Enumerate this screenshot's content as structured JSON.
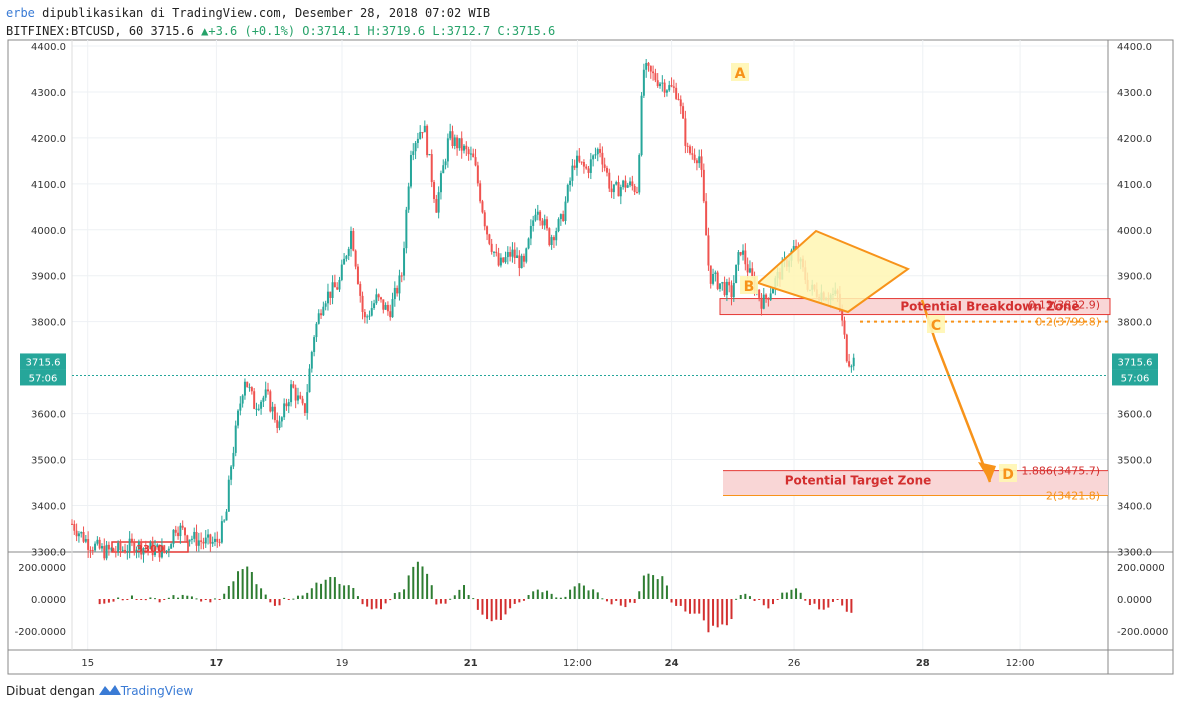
{
  "header": {
    "author": "erbe",
    "published_text": "dipublikasikan di TradingView.com, Desember 28, 2018 07:02 WIB",
    "symbol": "BITFINEX:BTCUSD",
    "interval": "60",
    "last": "3715.6",
    "change": "+3.6 (+0.1%)",
    "open": "O:3714.1",
    "high": "H:3719.6",
    "low": "L:3712.7",
    "close": "C:3715.6"
  },
  "footer": {
    "made_with": "Dibuat dengan",
    "brand": "TradingView"
  },
  "colors": {
    "up": "#26a69a",
    "down": "#ef5350",
    "pattern": "#f7931a",
    "zone_fill": "#f9d6d6",
    "zone_line": "#e53935",
    "price_badge": "#26a69a"
  },
  "chart_data": {
    "type": "candlestick",
    "price_axis": {
      "ticks": [
        "4400.0",
        "4300.0",
        "4200.0",
        "4100.0",
        "4000.0",
        "3900.0",
        "3800.0",
        "3600.0",
        "3500.0",
        "3400.0",
        "3300.0"
      ],
      "ylim": [
        3290,
        4400
      ]
    },
    "time_axis": {
      "ticks": [
        "15",
        "17",
        "19",
        "21",
        "12:00",
        "24",
        "26",
        "28",
        "12:00"
      ]
    },
    "last_price_label": "3715.6",
    "countdown_label": "57:06",
    "indicator_axis": {
      "ticks": [
        "200.0000",
        "0.0000",
        "-200.0000"
      ]
    },
    "path_points": [
      {
        "t": 0,
        "p": 3360
      },
      {
        "t": 0.5,
        "p": 3320
      },
      {
        "t": 1,
        "p": 3300
      },
      {
        "t": 1.5,
        "p": 3302
      },
      {
        "t": 2,
        "p": 3315
      },
      {
        "t": 2.5,
        "p": 3305
      },
      {
        "t": 3,
        "p": 3300
      },
      {
        "t": 3.3,
        "p": 3355
      },
      {
        "t": 3.8,
        "p": 3330
      },
      {
        "t": 4.2,
        "p": 3320
      },
      {
        "t": 4.6,
        "p": 3318
      },
      {
        "t": 4.9,
        "p": 3370
      },
      {
        "t": 5.05,
        "p": 3480
      },
      {
        "t": 5.3,
        "p": 3600
      },
      {
        "t": 5.5,
        "p": 3680
      },
      {
        "t": 5.8,
        "p": 3620
      },
      {
        "t": 6.2,
        "p": 3640
      },
      {
        "t": 6.6,
        "p": 3570
      },
      {
        "t": 7,
        "p": 3660
      },
      {
        "t": 7.4,
        "p": 3600
      },
      {
        "t": 7.7,
        "p": 3770
      },
      {
        "t": 8,
        "p": 3850
      },
      {
        "t": 8.5,
        "p": 3880
      },
      {
        "t": 8.9,
        "p": 4000
      },
      {
        "t": 9.3,
        "p": 3800
      },
      {
        "t": 9.7,
        "p": 3850
      },
      {
        "t": 10.1,
        "p": 3820
      },
      {
        "t": 10.5,
        "p": 3900
      },
      {
        "t": 10.8,
        "p": 4180
      },
      {
        "t": 11.2,
        "p": 4230
      },
      {
        "t": 11.6,
        "p": 4050
      },
      {
        "t": 12,
        "p": 4200
      },
      {
        "t": 12.4,
        "p": 4180
      },
      {
        "t": 12.8,
        "p": 4150
      },
      {
        "t": 13.2,
        "p": 4000
      },
      {
        "t": 13.6,
        "p": 3920
      },
      {
        "t": 14,
        "p": 3950
      },
      {
        "t": 14.4,
        "p": 3920
      },
      {
        "t": 14.8,
        "p": 4060
      },
      {
        "t": 15.2,
        "p": 3980
      },
      {
        "t": 15.6,
        "p": 4020
      },
      {
        "t": 16,
        "p": 4150
      },
      {
        "t": 16.4,
        "p": 4130
      },
      {
        "t": 16.8,
        "p": 4180
      },
      {
        "t": 17.2,
        "p": 4080
      },
      {
        "t": 17.6,
        "p": 4100
      },
      {
        "t": 18,
        "p": 4090
      },
      {
        "t": 18.2,
        "p": 4350
      },
      {
        "t": 18.6,
        "p": 4330
      },
      {
        "t": 19,
        "p": 4310
      },
      {
        "t": 19.3,
        "p": 4300
      },
      {
        "t": 19.6,
        "p": 4170
      },
      {
        "t": 20,
        "p": 4160
      },
      {
        "t": 20.3,
        "p": 3900
      },
      {
        "t": 20.7,
        "p": 3880
      },
      {
        "t": 21,
        "p": 3860
      },
      {
        "t": 21.3,
        "p": 3960
      },
      {
        "t": 21.6,
        "p": 3900
      },
      {
        "t": 22,
        "p": 3840
      },
      {
        "t": 22.5,
        "p": 3900
      },
      {
        "t": 23,
        "p": 3960
      },
      {
        "t": 23.5,
        "p": 3870
      },
      {
        "t": 24,
        "p": 3860
      },
      {
        "t": 24.4,
        "p": 3855
      },
      {
        "t": 24.7,
        "p": 3720
      },
      {
        "t": 24.9,
        "p": 3715.6
      }
    ],
    "annotations": {
      "point_labels": [
        "A",
        "B",
        "C",
        "D"
      ],
      "breakdown_zone_label": "Potential Breakdown Zone",
      "target_zone_label": "Potential Target Zone",
      "fib_levels": [
        {
          "label": "0.13(3832.9)",
          "price": 3832.9
        },
        {
          "label": "0.2(3799.8)",
          "price": 3799.8
        },
        {
          "label": "1.886(3475.7)",
          "price": 3475.7
        },
        {
          "label": "2(3421.8)",
          "price": 3421.8
        }
      ],
      "prior_zone_label": "3300"
    }
  }
}
